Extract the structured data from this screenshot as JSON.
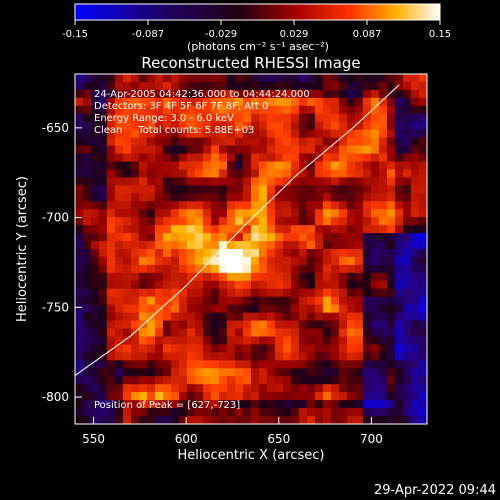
{
  "colorbar": {
    "ticks": [
      "-0.15",
      "-0.087",
      "-0.029",
      "0.029",
      "0.087",
      "0.15"
    ],
    "unit_label": "(photons cm⁻² s⁻¹ asec⁻²)",
    "range": [
      -0.15,
      0.15
    ]
  },
  "chart_data": {
    "type": "heatmap",
    "title": "Reconstructed RHESSI Image",
    "xlabel": "Heliocentric X (arcsec)",
    "ylabel": "Heliocentric Y (arcsec)",
    "xlim": [
      540,
      730
    ],
    "ylim": [
      -815,
      -620
    ],
    "xticks": [
      "550",
      "600",
      "650",
      "700"
    ],
    "yticks": [
      "-650",
      "-700",
      "-750",
      "-800"
    ],
    "peak": [
      627,
      -723
    ],
    "annotations": [
      "24-Apr-2005 04:42:36.000 to 04:44:24.000",
      "Detectors: 3F 4F 5F 6F 7F 8F, Att 0",
      "Energy Range: 3.0 - 6.0 keV",
      "Clean     Total counts: 5.88E+03"
    ],
    "peak_label": "Position of Peak = [627,-723]",
    "colormap": "blue-black-red-yellow-white",
    "limb_curve": [
      [
        540,
        -788
      ],
      [
        570,
        -766
      ],
      [
        600,
        -738
      ],
      [
        630,
        -706
      ],
      [
        660,
        -676
      ],
      [
        690,
        -650
      ],
      [
        715,
        -626
      ]
    ]
  },
  "footer": {
    "timestamp": "29-Apr-2022 09:44"
  }
}
